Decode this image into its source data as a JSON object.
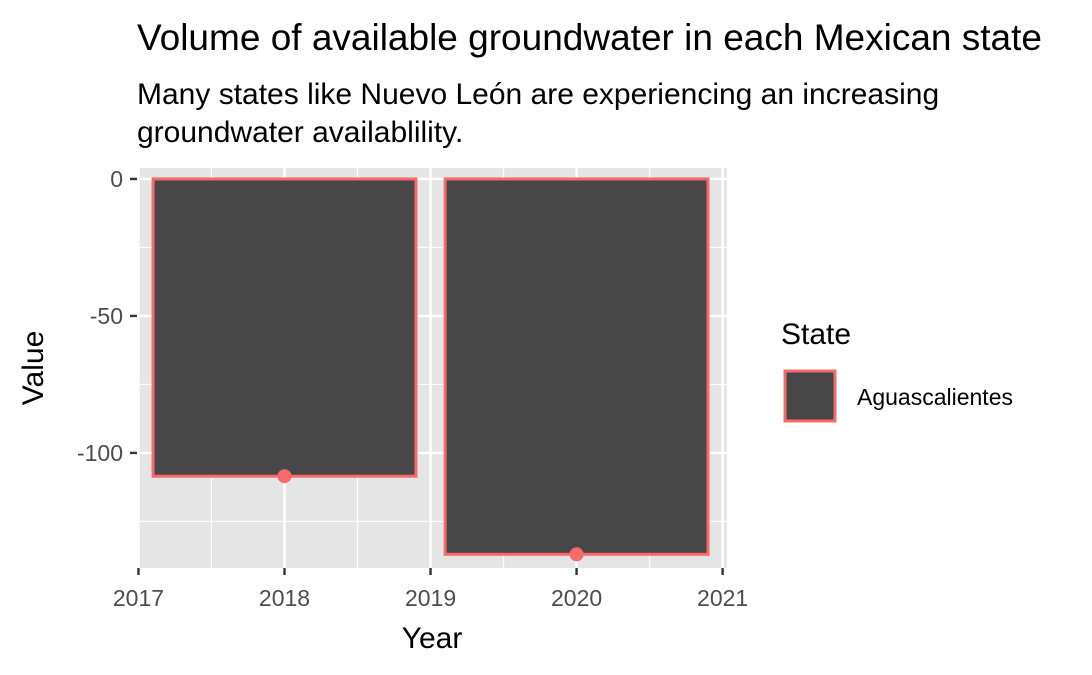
{
  "chart_data": {
    "type": "bar",
    "title": "Volume of available groundwater in each Mexican state",
    "subtitle_lines": [
      "Many states like Nuevo León are experiencing an increasing",
      "groundwater availablility."
    ],
    "xlabel": "Year",
    "ylabel": "Value",
    "x": [
      2018,
      2020
    ],
    "series": [
      {
        "name": "Aguascalientes",
        "values": [
          -108.5,
          -137.0
        ]
      }
    ],
    "xlim": [
      2016.99,
      2021.03
    ],
    "ylim": [
      -142,
      4
    ],
    "x_ticks": [
      2017,
      2018,
      2019,
      2020,
      2021
    ],
    "x_tick_labels": [
      "2017",
      "2018",
      "2019",
      "2020",
      "2021"
    ],
    "y_ticks": [
      0,
      -50,
      -100
    ],
    "y_tick_labels": [
      "0",
      "-50",
      "-100"
    ],
    "bar_width_years": 1.8,
    "grid": true,
    "legend": {
      "title": "State",
      "position": "right",
      "entries": [
        "Aguascalientes"
      ]
    },
    "colors": {
      "bar_fill": "#474747",
      "bar_outline": "#f8696b",
      "point": "#f8696b",
      "panel_background": "#e5e5e5",
      "grid": "#ffffff"
    }
  }
}
